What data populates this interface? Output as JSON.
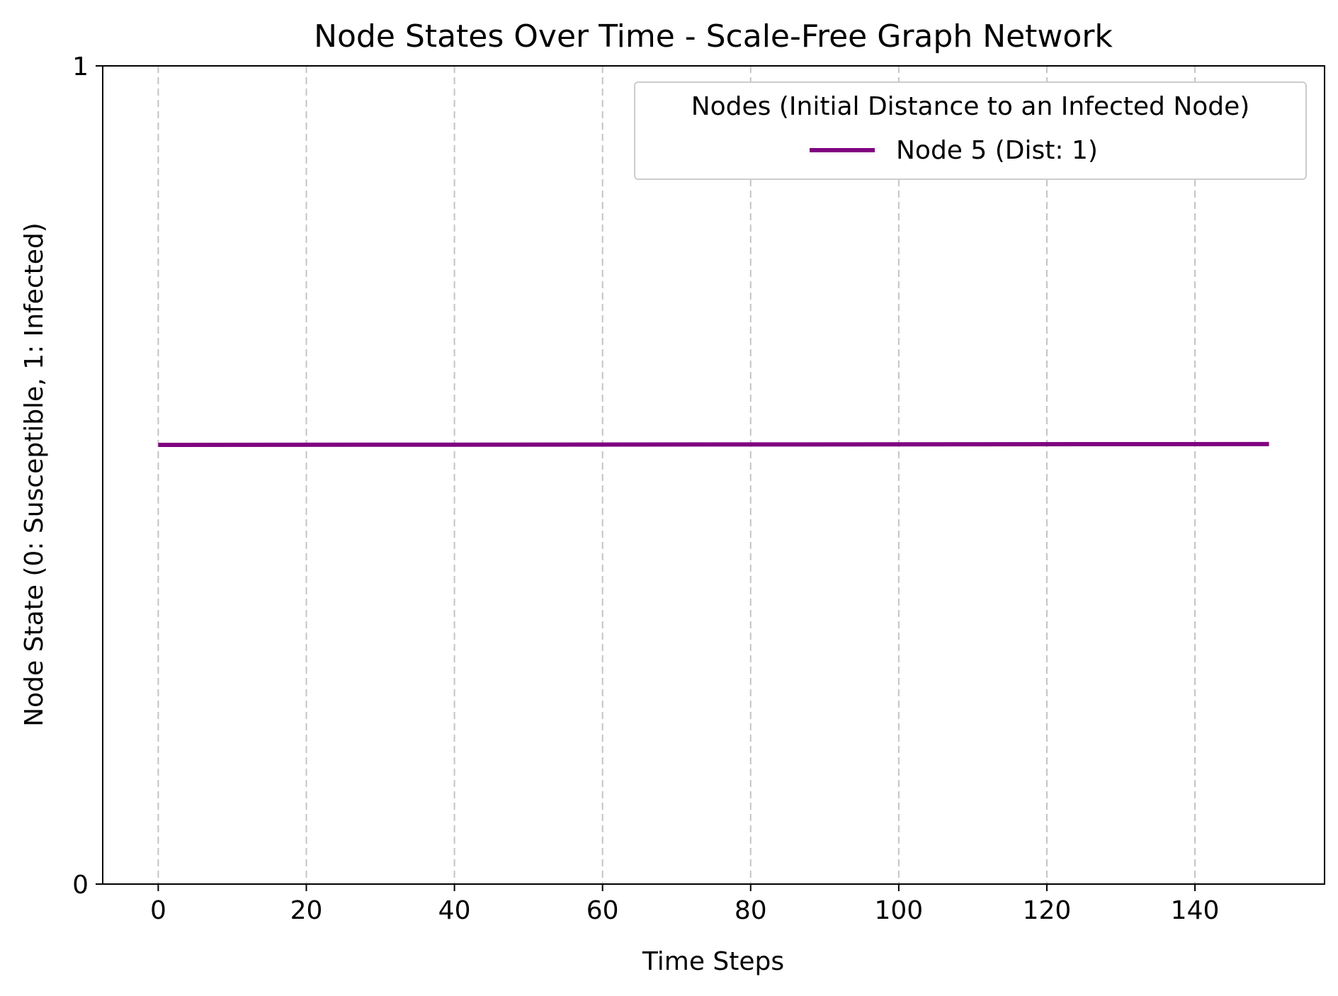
{
  "chart_data": {
    "type": "line",
    "title": "Node States Over Time - Scale-Free Graph Network",
    "xlabel": "Time Steps",
    "ylabel": "Node State (0: Susceptible, 1: Infected)",
    "xlim": [
      -7.5,
      157.5
    ],
    "ylim": [
      0,
      1
    ],
    "xticks": [
      0,
      20,
      40,
      60,
      80,
      100,
      120,
      140
    ],
    "yticks": [
      0,
      1
    ],
    "grid": "x-dashed",
    "legend": {
      "title": "Nodes (Initial Distance to an Infected Node)",
      "placement": "top-right"
    },
    "series": [
      {
        "name": "Node 5 (Dist: 1)",
        "color": "#800080",
        "x": [
          0,
          150
        ],
        "y": [
          0.5368,
          0.5378
        ]
      }
    ]
  }
}
